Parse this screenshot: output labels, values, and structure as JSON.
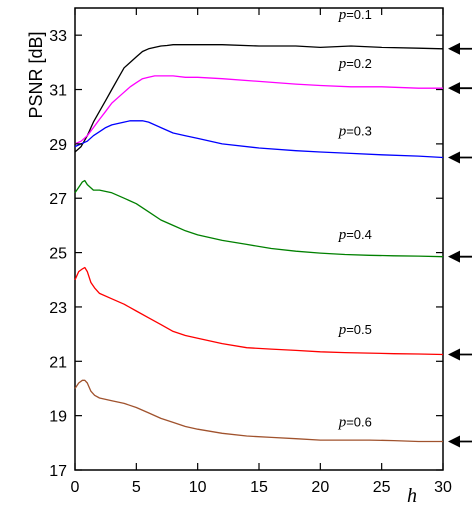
{
  "chart_data": {
    "type": "line",
    "title": "",
    "xlabel": "h",
    "ylabel": "PSNR  [dB]",
    "xlim": [
      0,
      30
    ],
    "ylim": [
      17,
      34
    ],
    "xticks": [
      0,
      5,
      10,
      15,
      20,
      25,
      30
    ],
    "yticks": [
      17,
      19,
      21,
      23,
      25,
      27,
      29,
      31,
      33
    ],
    "grid": false,
    "legend": "none",
    "series": [
      {
        "name": "p = 0.1",
        "label_prefix": "p",
        "label_suffix": "=0.1",
        "color": "#000000",
        "label_at": [
          21.5,
          33.6
        ],
        "x": [
          0,
          0.5,
          1,
          1.5,
          2,
          2.5,
          3,
          3.5,
          4,
          4.5,
          5,
          5.5,
          6,
          6.5,
          7,
          7.5,
          8,
          9,
          10,
          12,
          15,
          18,
          20,
          22.5,
          25,
          28,
          30
        ],
        "y": [
          28.7,
          28.9,
          29.3,
          29.8,
          30.2,
          30.6,
          31.0,
          31.4,
          31.8,
          32.0,
          32.2,
          32.4,
          32.5,
          32.55,
          32.6,
          32.62,
          32.65,
          32.65,
          32.65,
          32.65,
          32.6,
          32.6,
          32.55,
          32.6,
          32.55,
          32.52,
          32.5
        ]
      },
      {
        "name": "p = 0.2",
        "label_prefix": "p",
        "label_suffix": "=0.2",
        "color": "#ff00ff",
        "label_at": [
          21.5,
          31.8
        ],
        "x": [
          0,
          0.5,
          1,
          1.5,
          2,
          2.5,
          3,
          3.5,
          4,
          4.5,
          5,
          5.5,
          6,
          6.5,
          7,
          8,
          9,
          10,
          12,
          15,
          18,
          20,
          22.5,
          25,
          28,
          30
        ],
        "y": [
          29.0,
          29.1,
          29.3,
          29.6,
          29.9,
          30.2,
          30.5,
          30.7,
          30.9,
          31.1,
          31.25,
          31.4,
          31.45,
          31.5,
          31.5,
          31.5,
          31.45,
          31.45,
          31.4,
          31.3,
          31.2,
          31.15,
          31.1,
          31.1,
          31.05,
          31.05
        ]
      },
      {
        "name": "p = 0.3",
        "label_prefix": "p",
        "label_suffix": "=0.3",
        "color": "#0000ff",
        "label_at": [
          21.5,
          29.3
        ],
        "x": [
          0,
          0.5,
          1,
          1.5,
          2,
          2.5,
          3,
          3.5,
          4,
          4.5,
          5,
          5.5,
          6,
          7,
          8,
          9,
          10,
          12,
          15,
          18,
          20,
          22.5,
          25,
          28,
          30
        ],
        "y": [
          28.9,
          29.0,
          29.1,
          29.3,
          29.45,
          29.6,
          29.7,
          29.75,
          29.8,
          29.85,
          29.85,
          29.85,
          29.8,
          29.6,
          29.4,
          29.3,
          29.2,
          29.0,
          28.85,
          28.75,
          28.7,
          28.65,
          28.6,
          28.55,
          28.5
        ]
      },
      {
        "name": "p = 0.4",
        "label_prefix": "p",
        "label_suffix": "=0.4",
        "color": "#008000",
        "label_at": [
          21.5,
          25.5
        ],
        "x": [
          0,
          0.3,
          0.6,
          0.8,
          1,
          1.5,
          2,
          3,
          4,
          5,
          6,
          7,
          8,
          9,
          10,
          12,
          14,
          16,
          18,
          20,
          22,
          24,
          26,
          28,
          30
        ],
        "y": [
          27.2,
          27.4,
          27.6,
          27.65,
          27.5,
          27.3,
          27.3,
          27.2,
          27.0,
          26.8,
          26.5,
          26.2,
          26.0,
          25.8,
          25.65,
          25.45,
          25.3,
          25.15,
          25.05,
          24.98,
          24.93,
          24.9,
          24.88,
          24.87,
          24.85
        ]
      },
      {
        "name": "p = 0.5",
        "label_prefix": "p",
        "label_suffix": "=0.5",
        "color": "#ff0000",
        "label_at": [
          21.5,
          22.0
        ],
        "x": [
          0,
          0.3,
          0.6,
          0.8,
          1,
          1.3,
          1.6,
          2,
          3,
          4,
          5,
          6,
          7,
          8,
          9,
          10,
          12,
          14,
          16,
          18,
          20,
          22,
          24,
          26,
          28,
          30
        ],
        "y": [
          24.0,
          24.3,
          24.4,
          24.45,
          24.3,
          23.9,
          23.7,
          23.5,
          23.3,
          23.1,
          22.85,
          22.6,
          22.35,
          22.1,
          21.95,
          21.85,
          21.65,
          21.5,
          21.45,
          21.4,
          21.35,
          21.32,
          21.3,
          21.28,
          21.27,
          21.25
        ]
      },
      {
        "name": "p = 0.6",
        "label_prefix": "p",
        "label_suffix": "=0.6",
        "color": "#a0522d",
        "label_at": [
          21.5,
          18.6
        ],
        "x": [
          0,
          0.3,
          0.6,
          0.8,
          1,
          1.3,
          1.6,
          2,
          3,
          4,
          5,
          6,
          7,
          8,
          9,
          10,
          12,
          14,
          16,
          18,
          20,
          22,
          24,
          26,
          28,
          30
        ],
        "y": [
          20.0,
          20.2,
          20.3,
          20.3,
          20.2,
          19.9,
          19.75,
          19.65,
          19.55,
          19.45,
          19.3,
          19.1,
          18.9,
          18.75,
          18.6,
          18.5,
          18.35,
          18.25,
          18.2,
          18.15,
          18.1,
          18.1,
          18.1,
          18.08,
          18.05,
          18.05
        ]
      }
    ],
    "arrows": [
      32.5,
      31.05,
      28.5,
      24.85,
      21.25,
      18.05
    ]
  }
}
